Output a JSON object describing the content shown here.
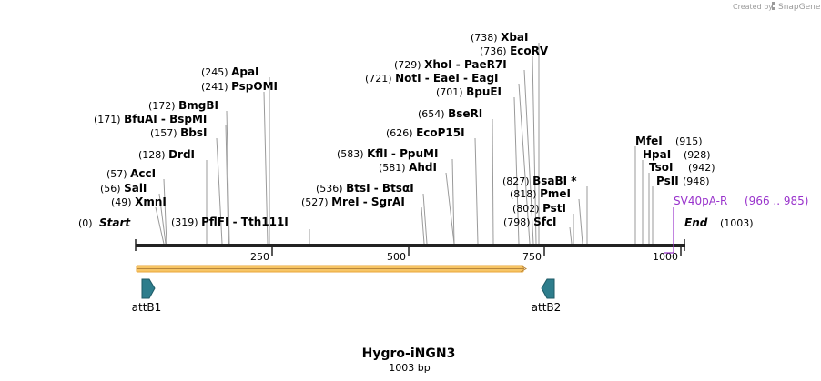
{
  "brand": {
    "created_by": "Created by",
    "name": "SnapGene",
    "color": "#9a9a9a"
  },
  "map": {
    "title": "Hygro-iNGN3",
    "length_label": "1003 bp",
    "length": 1003,
    "ticks": [
      "250",
      "500",
      "750",
      "1000"
    ],
    "start_label": "Start",
    "start_pos": "(0)",
    "end_label": "End",
    "end_pos": "(1003)",
    "backbone_color": "#222222",
    "orf_color": "#f7c565",
    "orf_start": 1,
    "orf_end": 724
  },
  "sites": [
    {
      "pos": "(49)",
      "names": [
        "XmnI"
      ]
    },
    {
      "pos": "(56)",
      "names": [
        "SalI"
      ]
    },
    {
      "pos": "(57)",
      "names": [
        "AccI"
      ]
    },
    {
      "pos": "(128)",
      "names": [
        "DrdI"
      ]
    },
    {
      "pos": "(157)",
      "names": [
        "BbsI"
      ]
    },
    {
      "pos": "(171)",
      "names": [
        "BfuAI",
        "BspMI"
      ]
    },
    {
      "pos": "(172)",
      "names": [
        "BmgBI"
      ]
    },
    {
      "pos": "(241)",
      "names": [
        "PspOMI"
      ]
    },
    {
      "pos": "(245)",
      "names": [
        "ApaI"
      ]
    },
    {
      "pos": "(319)",
      "names": [
        "PflFI",
        "Tth111I"
      ]
    },
    {
      "pos": "(527)",
      "names": [
        "MreI",
        "SgrAI"
      ]
    },
    {
      "pos": "(536)",
      "names": [
        "BtsI",
        "BtsαI"
      ]
    },
    {
      "pos": "(581)",
      "names": [
        "AhdI"
      ]
    },
    {
      "pos": "(583)",
      "names": [
        "KflI",
        "PpuMI"
      ]
    },
    {
      "pos": "(626)",
      "names": [
        "EcoP15I"
      ]
    },
    {
      "pos": "(654)",
      "names": [
        "BseRI"
      ]
    },
    {
      "pos": "(701)",
      "names": [
        "BpuEI"
      ]
    },
    {
      "pos": "(721)",
      "names": [
        "NotI",
        "EaeI",
        "EagI"
      ]
    },
    {
      "pos": "(729)",
      "names": [
        "XhoI",
        "PaeR7I"
      ]
    },
    {
      "pos": "(736)",
      "names": [
        "EcoRV"
      ]
    },
    {
      "pos": "(738)",
      "names": [
        "XbaI"
      ]
    },
    {
      "pos": "(798)",
      "names": [
        "SfcI"
      ]
    },
    {
      "pos": "(802)",
      "names": [
        "PstI"
      ]
    },
    {
      "pos": "(818)",
      "names": [
        "PmeI"
      ]
    },
    {
      "pos": "(827)",
      "names": [
        "BsaBI *"
      ]
    },
    {
      "pos": "(915)",
      "names": [
        "MfeI"
      ]
    },
    {
      "pos": "(928)",
      "names": [
        "HpaI"
      ]
    },
    {
      "pos": "(942)",
      "names": [
        "TsoI"
      ]
    },
    {
      "pos": "(948)",
      "names": [
        "PsII"
      ]
    }
  ],
  "features": [
    {
      "label": "attB1",
      "color": "#2e7d8c",
      "direction": "right",
      "pos": 22
    },
    {
      "label": "attB2",
      "color": "#2e7d8c",
      "direction": "left",
      "pos": 755
    }
  ],
  "primers": [
    {
      "label": "SV40pA-R",
      "range": "(966 .. 985)",
      "color": "#9933cc",
      "pos": 985
    }
  ]
}
